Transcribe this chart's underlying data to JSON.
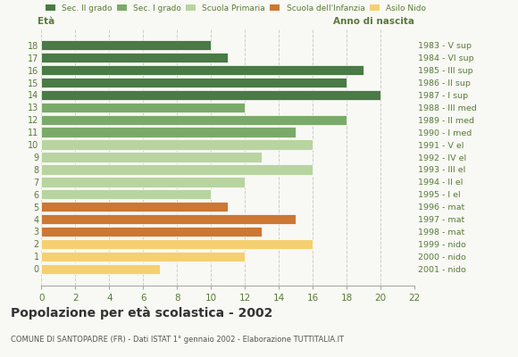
{
  "ages": [
    18,
    17,
    16,
    15,
    14,
    13,
    12,
    11,
    10,
    9,
    8,
    7,
    6,
    5,
    4,
    3,
    2,
    1,
    0
  ],
  "values": [
    10,
    11,
    19,
    18,
    20,
    12,
    18,
    15,
    16,
    13,
    16,
    12,
    10,
    11,
    15,
    13,
    16,
    12,
    7
  ],
  "years": [
    "1983 - V sup",
    "1984 - VI sup",
    "1985 - III sup",
    "1986 - II sup",
    "1987 - I sup",
    "1988 - III med",
    "1989 - II med",
    "1990 - I med",
    "1991 - V el",
    "1992 - IV el",
    "1993 - III el",
    "1994 - II el",
    "1995 - I el",
    "1996 - mat",
    "1997 - mat",
    "1998 - mat",
    "1999 - nido",
    "2000 - nido",
    "2001 - nido"
  ],
  "categories": [
    "Sec. II grado",
    "Sec. I grado",
    "Scuola Primaria",
    "Scuola dell'Infanzia",
    "Asilo Nido"
  ],
  "legend_colors": [
    "#4a7a45",
    "#7aaa6a",
    "#b8d4a0",
    "#cc7733",
    "#f5d070"
  ],
  "bar_colors": [
    "#4a7a45",
    "#4a7a45",
    "#4a7a45",
    "#4a7a45",
    "#4a7a45",
    "#7aaa6a",
    "#7aaa6a",
    "#7aaa6a",
    "#b8d4a0",
    "#b8d4a0",
    "#b8d4a0",
    "#b8d4a0",
    "#b8d4a0",
    "#cc7733",
    "#cc7733",
    "#cc7733",
    "#f5d070",
    "#f5d070",
    "#f5d070"
  ],
  "xlim": [
    0,
    22
  ],
  "xticks": [
    0,
    2,
    4,
    6,
    8,
    10,
    12,
    14,
    16,
    18,
    20,
    22
  ],
  "title": "Popolazione per età scolastica - 2002",
  "subtitle": "COMUNE DI SANTOPADRE (FR) - Dati ISTAT 1° gennaio 2002 - Elaborazione TUTTITALIA.IT",
  "ylabel_left": "Età",
  "ylabel_right": "Anno di nascita",
  "text_color": "#5a7a3a",
  "background_color": "#f8f8f4",
  "grid_color": "#cccccc",
  "bar_height": 0.82
}
